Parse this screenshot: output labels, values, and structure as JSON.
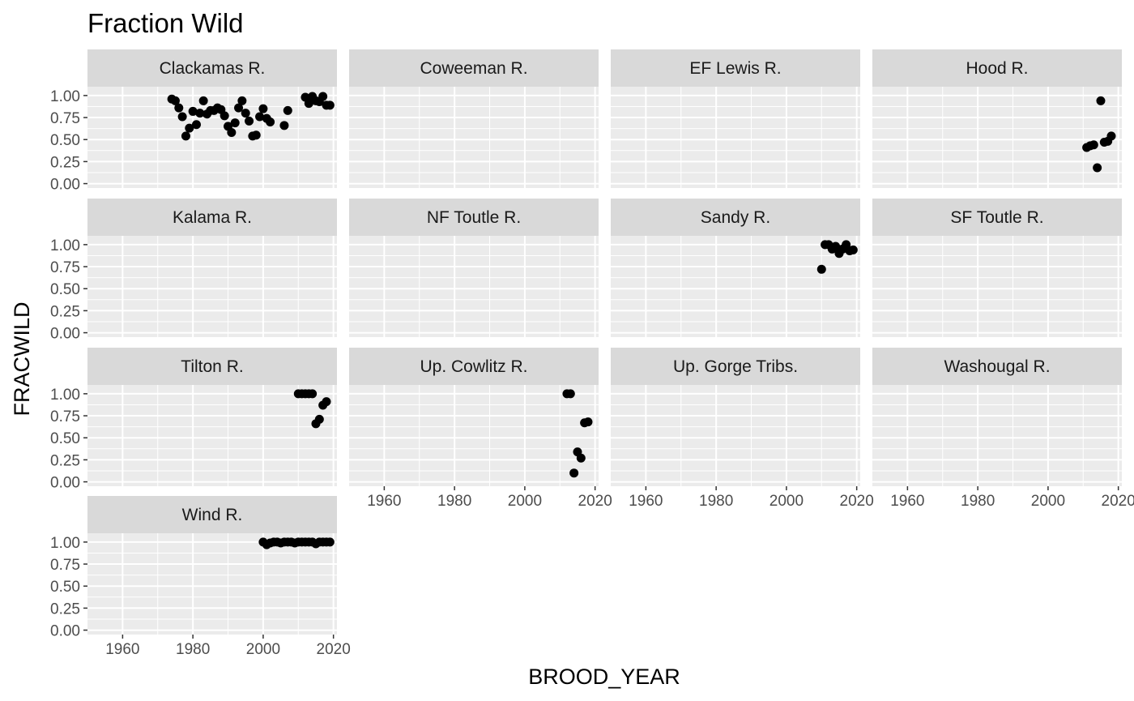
{
  "chart_data": {
    "type": "scatter",
    "title": "Fraction Wild",
    "xlabel": "BROOD_YEAR",
    "ylabel": "FRACWILD",
    "xlim": [
      1950,
      2021
    ],
    "ylim": [
      -0.05,
      1.1
    ],
    "x_ticks": [
      1960,
      1980,
      2000,
      2020
    ],
    "y_ticks": [
      0,
      0.25,
      0.5,
      0.75,
      1
    ],
    "x_tick_labels": [
      "1960",
      "1980",
      "2000",
      "2020"
    ],
    "y_tick_labels": [
      "0.00",
      "0.25",
      "0.50",
      "0.75",
      "1.00"
    ],
    "grid": true,
    "legend": "none",
    "colors": {
      "panel_bg": "#ebebeb",
      "strip_bg": "#d9d9d9",
      "grid": "#ffffff",
      "point": "#000000",
      "tick": "#333333"
    },
    "facets": [
      {
        "name": "Clackamas R.",
        "points": [
          [
            1974,
            0.96
          ],
          [
            1975,
            0.94
          ],
          [
            1976,
            0.86
          ],
          [
            1977,
            0.76
          ],
          [
            1978,
            0.54
          ],
          [
            1979,
            0.63
          ],
          [
            1980,
            0.82
          ],
          [
            1981,
            0.67
          ],
          [
            1982,
            0.8
          ],
          [
            1983,
            0.94
          ],
          [
            1984,
            0.79
          ],
          [
            1985,
            0.83
          ],
          [
            1986,
            0.83
          ],
          [
            1987,
            0.86
          ],
          [
            1988,
            0.84
          ],
          [
            1989,
            0.77
          ],
          [
            1990,
            0.65
          ],
          [
            1991,
            0.58
          ],
          [
            1992,
            0.69
          ],
          [
            1993,
            0.86
          ],
          [
            1994,
            0.94
          ],
          [
            1995,
            0.8
          ],
          [
            1996,
            0.71
          ],
          [
            1997,
            0.54
          ],
          [
            1998,
            0.55
          ],
          [
            1999,
            0.76
          ],
          [
            2000,
            0.85
          ],
          [
            2001,
            0.74
          ],
          [
            2002,
            0.7
          ],
          [
            2006,
            0.66
          ],
          [
            2007,
            0.83
          ],
          [
            2012,
            0.98
          ],
          [
            2013,
            0.91
          ],
          [
            2014,
            0.99
          ],
          [
            2015,
            0.94
          ],
          [
            2016,
            0.93
          ],
          [
            2017,
            0.99
          ],
          [
            2018,
            0.89
          ],
          [
            2019,
            0.89
          ]
        ]
      },
      {
        "name": "Coweeman R.",
        "points": []
      },
      {
        "name": "EF Lewis R.",
        "points": []
      },
      {
        "name": "Hood R.",
        "points": [
          [
            2011,
            0.41
          ],
          [
            2012,
            0.43
          ],
          [
            2013,
            0.44
          ],
          [
            2014,
            0.18
          ],
          [
            2015,
            0.94
          ],
          [
            2016,
            0.47
          ],
          [
            2017,
            0.48
          ],
          [
            2018,
            0.54
          ]
        ]
      },
      {
        "name": "Kalama R.",
        "points": []
      },
      {
        "name": "NF Toutle R.",
        "points": []
      },
      {
        "name": "Sandy R.",
        "points": [
          [
            2010,
            0.72
          ],
          [
            2011,
            1.0
          ],
          [
            2012,
            1.0
          ],
          [
            2013,
            0.95
          ],
          [
            2014,
            0.98
          ],
          [
            2015,
            0.9
          ],
          [
            2016,
            0.95
          ],
          [
            2017,
            1.0
          ],
          [
            2018,
            0.93
          ],
          [
            2019,
            0.94
          ]
        ]
      },
      {
        "name": "SF Toutle R.",
        "points": []
      },
      {
        "name": "Tilton R.",
        "points": [
          [
            2010,
            1.0
          ],
          [
            2011,
            1.0
          ],
          [
            2012,
            1.0
          ],
          [
            2013,
            1.0
          ],
          [
            2014,
            1.0
          ],
          [
            2015,
            0.66
          ],
          [
            2016,
            0.71
          ],
          [
            2017,
            0.87
          ],
          [
            2018,
            0.91
          ]
        ]
      },
      {
        "name": "Up. Cowlitz R.",
        "points": [
          [
            2012,
            1.0
          ],
          [
            2013,
            1.0
          ],
          [
            2014,
            0.1
          ],
          [
            2015,
            0.34
          ],
          [
            2016,
            0.27
          ],
          [
            2017,
            0.67
          ],
          [
            2018,
            0.68
          ]
        ]
      },
      {
        "name": "Up. Gorge Tribs.",
        "points": []
      },
      {
        "name": "Washougal R.",
        "points": []
      },
      {
        "name": "Wind R.",
        "points": [
          [
            2000,
            1.0
          ],
          [
            2001,
            0.97
          ],
          [
            2002,
            0.99
          ],
          [
            2003,
            1.0
          ],
          [
            2004,
            1.0
          ],
          [
            2005,
            0.99
          ],
          [
            2006,
            1.0
          ],
          [
            2007,
            1.0
          ],
          [
            2008,
            1.0
          ],
          [
            2009,
            0.99
          ],
          [
            2010,
            1.0
          ],
          [
            2011,
            1.0
          ],
          [
            2012,
            1.0
          ],
          [
            2013,
            1.0
          ],
          [
            2014,
            1.0
          ],
          [
            2015,
            0.98
          ],
          [
            2016,
            1.0
          ],
          [
            2017,
            1.0
          ],
          [
            2018,
            1.0
          ],
          [
            2019,
            1.0
          ]
        ]
      }
    ]
  }
}
